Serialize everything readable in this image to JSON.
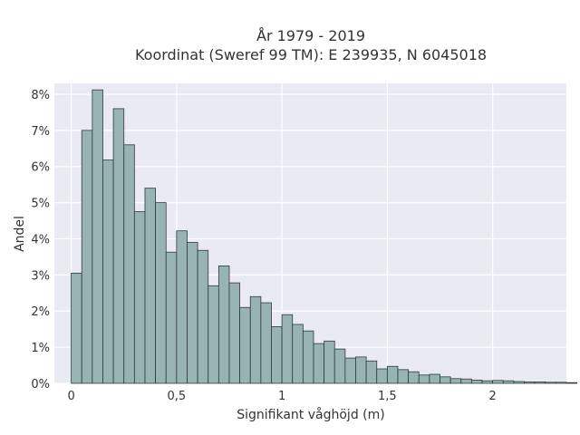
{
  "chart_data": {
    "type": "bar",
    "title_line1": "År 1979 - 2019",
    "title_line2": "Koordinat (Sweref 99 TM): E 239935, N 6045018",
    "xlabel": "Signifikant våghöjd (m)",
    "ylabel": "Andel",
    "xlim": [
      -0.08,
      2.35
    ],
    "ylim": [
      0,
      8.3
    ],
    "x_ticks": [
      {
        "value": 0,
        "label": "0"
      },
      {
        "value": 0.5,
        "label": "0,5"
      },
      {
        "value": 1,
        "label": "1"
      },
      {
        "value": 1.5,
        "label": "1,5"
      },
      {
        "value": 2,
        "label": "2"
      }
    ],
    "y_ticks": [
      {
        "value": 0,
        "label": "0%"
      },
      {
        "value": 1,
        "label": "1%"
      },
      {
        "value": 2,
        "label": "2%"
      },
      {
        "value": 3,
        "label": "3%"
      },
      {
        "value": 4,
        "label": "4%"
      },
      {
        "value": 5,
        "label": "5%"
      },
      {
        "value": 6,
        "label": "6%"
      },
      {
        "value": 7,
        "label": "7%"
      },
      {
        "value": 8,
        "label": "8%"
      }
    ],
    "bin_start": 0,
    "bin_width": 0.05,
    "values": [
      3.05,
      7.0,
      8.12,
      6.18,
      7.6,
      6.6,
      4.75,
      5.4,
      5.0,
      3.63,
      4.22,
      3.9,
      3.68,
      2.7,
      3.25,
      2.78,
      2.1,
      2.4,
      2.23,
      1.57,
      1.9,
      1.63,
      1.45,
      1.1,
      1.17,
      0.95,
      0.7,
      0.73,
      0.62,
      0.4,
      0.47,
      0.38,
      0.32,
      0.23,
      0.25,
      0.18,
      0.13,
      0.12,
      0.09,
      0.07,
      0.08,
      0.07,
      0.05,
      0.04,
      0.04,
      0.03,
      0.03,
      0.02
    ],
    "grid": true,
    "colors": {
      "bar_fill": "#98b4b2",
      "bar_stroke": "#2f3b3a",
      "plot_bg": "#eaeaf2",
      "grid": "#ffffff"
    }
  }
}
